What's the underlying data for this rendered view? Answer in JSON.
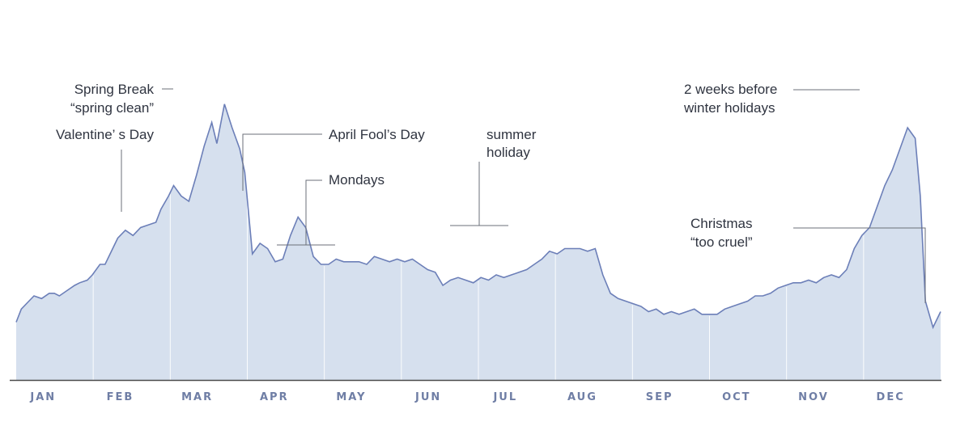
{
  "chart_data": {
    "type": "area",
    "categories": [
      "JAN",
      "FEB",
      "MAR",
      "APR",
      "MAY",
      "JUN",
      "JUL",
      "AUG",
      "SEP",
      "OCT",
      "NOV",
      "DEC"
    ],
    "x": [
      0,
      2,
      5,
      7,
      10,
      13,
      15,
      17,
      20,
      23,
      25,
      28,
      30,
      33,
      35,
      38,
      40,
      43,
      46,
      49,
      52,
      55,
      57,
      60,
      62,
      65,
      68,
      71,
      74,
      77,
      79,
      82,
      85,
      88,
      90,
      93,
      96,
      99,
      102,
      105,
      108,
      111,
      114,
      117,
      120,
      123,
      126,
      129,
      132,
      135,
      138,
      141,
      144,
      147,
      150,
      153,
      156,
      159,
      162,
      165,
      168,
      171,
      174,
      177,
      180,
      183,
      186,
      189,
      192,
      195,
      198,
      201,
      204,
      207,
      210,
      213,
      216,
      219,
      222,
      225,
      228,
      231,
      234,
      237,
      240,
      243,
      246,
      249,
      252,
      255,
      258,
      261,
      264,
      267,
      270,
      273,
      276,
      279,
      282,
      285,
      288,
      291,
      294,
      297,
      300,
      303,
      306,
      309,
      312,
      315,
      318,
      321,
      324,
      327,
      330,
      333,
      336,
      339,
      342,
      345,
      348,
      351,
      354,
      356,
      358,
      361,
      364
    ],
    "values": [
      22,
      27,
      30,
      32,
      31,
      33,
      33,
      32,
      34,
      36,
      37,
      38,
      40,
      44,
      44,
      50,
      54,
      57,
      55,
      58,
      59,
      60,
      65,
      70,
      74,
      70,
      68,
      78,
      89,
      98,
      90,
      105,
      96,
      88,
      79,
      48,
      52,
      50,
      45,
      46,
      55,
      62,
      58,
      47,
      44,
      44,
      46,
      45,
      45,
      45,
      44,
      47,
      46,
      45,
      46,
      45,
      46,
      44,
      42,
      41,
      36,
      38,
      39,
      38,
      37,
      39,
      38,
      40,
      39,
      40,
      41,
      42,
      44,
      46,
      49,
      48,
      50,
      50,
      50,
      49,
      50,
      40,
      33,
      31,
      30,
      29,
      28,
      26,
      27,
      25,
      26,
      25,
      26,
      27,
      25,
      25,
      25,
      27,
      28,
      29,
      30,
      32,
      32,
      33,
      35,
      36,
      37,
      37,
      38,
      37,
      39,
      40,
      39,
      42,
      50,
      55,
      58,
      66,
      74,
      80,
      88,
      96,
      92,
      70,
      30,
      20,
      26
    ],
    "ylim": [
      0,
      120
    ],
    "annotations": [
      {
        "text": "Valentine’ s Day",
        "x": 45
      },
      {
        "text": "Spring Break",
        "text2": "“spring clean”",
        "x": 80
      },
      {
        "text": "April Fool’s Day",
        "x": 91
      },
      {
        "text": "Mondays",
        "x": 118
      },
      {
        "text": "summer",
        "text2": "holiday",
        "x": 183
      },
      {
        "text": "2 weeks before",
        "text2": "winter holidays",
        "x": 336
      },
      {
        "text": "Christmas",
        "text2": "“too cruel”",
        "x": 358
      }
    ],
    "colors": {
      "fill": "#d6e0ee",
      "line": "#6c7fb8",
      "axis": "#4a4a4a",
      "month": "#6f7ea5"
    }
  }
}
